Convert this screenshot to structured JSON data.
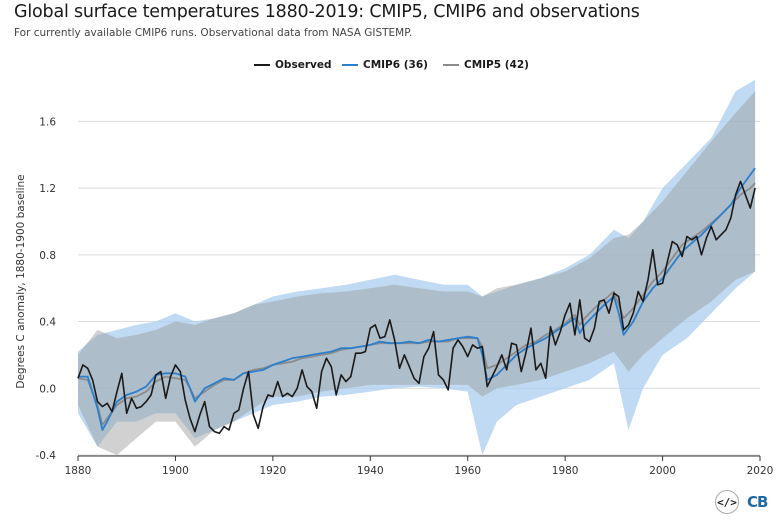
{
  "title": "Global surface temperatures 1880-2019: CMIP5, CMIP6 and observations",
  "subtitle": "For currently available CMIP6 runs. Observational data from NASA GISTEMP.",
  "colors": {
    "observed": "#1a1a1a",
    "cmip6": "#2b7fcc",
    "cmip5": "#8c8c8c",
    "cmip6_band": "#a9cdee",
    "cmip5_band": "#9a9a9a"
  },
  "legend": {
    "observed": "Observed",
    "cmip6": "CMIP6 (36)",
    "cmip5": "CMIP5 (42)"
  },
  "logo": {
    "embed_icon": "code-embed-icon",
    "brand": "CB"
  },
  "chart_data": {
    "type": "line",
    "title": "Global surface temperatures 1880-2019: CMIP5, CMIP6 and observations",
    "subtitle": "For currently available CMIP6 runs. Observational data from NASA GISTEMP.",
    "xlabel": "",
    "ylabel": "Degrees C anomaly, 1880-1900 baseline",
    "xlim": [
      1880,
      2020
    ],
    "ylim": [
      -0.4,
      1.8
    ],
    "xticks": [
      1880,
      1900,
      1920,
      1940,
      1960,
      1980,
      2000,
      2020
    ],
    "yticks": [
      -0.4,
      0.0,
      0.4,
      0.8,
      1.2,
      1.6
    ],
    "ytick_labels": [
      "-0.4",
      "0.0",
      "0.4",
      "0.8",
      "1.2",
      "1.6"
    ],
    "grid": "horizontal",
    "legend_position": "top-center",
    "bands": [
      {
        "name": "CMIP6 range",
        "x": [
          1880,
          1884,
          1888,
          1892,
          1896,
          1900,
          1904,
          1908,
          1912,
          1916,
          1920,
          1925,
          1930,
          1935,
          1940,
          1945,
          1950,
          1955,
          1960,
          1963,
          1966,
          1970,
          1975,
          1980,
          1985,
          1990,
          1993,
          1996,
          2000,
          2005,
          2010,
          2015,
          2019
        ],
        "lower": [
          -0.15,
          -0.35,
          -0.2,
          -0.2,
          -0.15,
          -0.15,
          -0.3,
          -0.25,
          -0.2,
          -0.15,
          -0.1,
          -0.08,
          -0.05,
          -0.04,
          -0.02,
          0.0,
          0.01,
          0.0,
          -0.02,
          -0.4,
          -0.2,
          -0.1,
          -0.05,
          0.0,
          0.05,
          0.15,
          -0.25,
          0.0,
          0.2,
          0.3,
          0.45,
          0.6,
          0.7
        ],
        "upper": [
          0.22,
          0.32,
          0.35,
          0.38,
          0.4,
          0.45,
          0.4,
          0.42,
          0.45,
          0.5,
          0.55,
          0.58,
          0.6,
          0.62,
          0.65,
          0.68,
          0.65,
          0.62,
          0.62,
          0.55,
          0.58,
          0.62,
          0.66,
          0.72,
          0.8,
          0.95,
          0.9,
          1.0,
          1.2,
          1.35,
          1.5,
          1.78,
          1.85
        ]
      },
      {
        "name": "CMIP5 range",
        "x": [
          1880,
          1884,
          1888,
          1892,
          1896,
          1900,
          1904,
          1908,
          1912,
          1916,
          1920,
          1925,
          1930,
          1935,
          1940,
          1945,
          1950,
          1955,
          1960,
          1963,
          1966,
          1970,
          1975,
          1980,
          1985,
          1990,
          1993,
          1996,
          2000,
          2005,
          2010,
          2015,
          2019
        ],
        "lower": [
          -0.1,
          -0.35,
          -0.4,
          -0.3,
          -0.2,
          -0.2,
          -0.35,
          -0.25,
          -0.2,
          -0.12,
          -0.05,
          -0.05,
          -0.02,
          0.0,
          0.02,
          0.02,
          0.02,
          0.02,
          0.02,
          -0.05,
          0.0,
          0.02,
          0.05,
          0.1,
          0.15,
          0.22,
          0.1,
          0.2,
          0.3,
          0.42,
          0.52,
          0.65,
          0.7
        ],
        "upper": [
          0.2,
          0.35,
          0.3,
          0.32,
          0.35,
          0.4,
          0.38,
          0.42,
          0.45,
          0.5,
          0.52,
          0.55,
          0.57,
          0.58,
          0.6,
          0.62,
          0.6,
          0.58,
          0.58,
          0.55,
          0.6,
          0.62,
          0.66,
          0.7,
          0.78,
          0.9,
          0.92,
          1.0,
          1.12,
          1.3,
          1.48,
          1.65,
          1.78
        ]
      }
    ],
    "series": [
      {
        "name": "Observed",
        "x": [
          1880,
          1881,
          1882,
          1883,
          1884,
          1885,
          1886,
          1887,
          1888,
          1889,
          1890,
          1891,
          1892,
          1893,
          1894,
          1895,
          1896,
          1897,
          1898,
          1899,
          1900,
          1901,
          1902,
          1903,
          1904,
          1905,
          1906,
          1907,
          1908,
          1909,
          1910,
          1911,
          1912,
          1913,
          1914,
          1915,
          1916,
          1917,
          1918,
          1919,
          1920,
          1921,
          1922,
          1923,
          1924,
          1925,
          1926,
          1927,
          1928,
          1929,
          1930,
          1931,
          1932,
          1933,
          1934,
          1935,
          1936,
          1937,
          1938,
          1939,
          1940,
          1941,
          1942,
          1943,
          1944,
          1945,
          1946,
          1947,
          1948,
          1949,
          1950,
          1951,
          1952,
          1953,
          1954,
          1955,
          1956,
          1957,
          1958,
          1959,
          1960,
          1961,
          1962,
          1963,
          1964,
          1965,
          1966,
          1967,
          1968,
          1969,
          1970,
          1971,
          1972,
          1973,
          1974,
          1975,
          1976,
          1977,
          1978,
          1979,
          1980,
          1981,
          1982,
          1983,
          1984,
          1985,
          1986,
          1987,
          1988,
          1989,
          1990,
          1991,
          1992,
          1993,
          1994,
          1995,
          1996,
          1997,
          1998,
          1999,
          2000,
          2001,
          2002,
          2003,
          2004,
          2005,
          2006,
          2007,
          2008,
          2009,
          2010,
          2011,
          2012,
          2013,
          2014,
          2015,
          2016,
          2017,
          2018,
          2019
        ],
        "values": [
          0.06,
          0.14,
          0.12,
          0.05,
          -0.08,
          -0.11,
          -0.09,
          -0.14,
          -0.02,
          0.09,
          -0.15,
          -0.06,
          -0.12,
          -0.11,
          -0.08,
          -0.04,
          0.08,
          0.1,
          -0.06,
          0.07,
          0.14,
          0.1,
          -0.07,
          -0.18,
          -0.26,
          -0.16,
          -0.08,
          -0.23,
          -0.26,
          -0.27,
          -0.23,
          -0.25,
          -0.15,
          -0.13,
          0.0,
          0.1,
          -0.16,
          -0.24,
          -0.11,
          -0.04,
          -0.05,
          0.04,
          -0.05,
          -0.03,
          -0.05,
          0.0,
          0.11,
          0.01,
          -0.02,
          -0.12,
          0.1,
          0.18,
          0.13,
          -0.04,
          0.08,
          0.04,
          0.07,
          0.21,
          0.21,
          0.22,
          0.36,
          0.38,
          0.3,
          0.31,
          0.41,
          0.29,
          0.12,
          0.2,
          0.13,
          0.06,
          0.03,
          0.19,
          0.24,
          0.34,
          0.08,
          0.05,
          -0.01,
          0.24,
          0.29,
          0.25,
          0.19,
          0.26,
          0.24,
          0.25,
          0.01,
          0.07,
          0.13,
          0.2,
          0.11,
          0.27,
          0.26,
          0.1,
          0.22,
          0.36,
          0.11,
          0.15,
          0.06,
          0.37,
          0.26,
          0.34,
          0.44,
          0.51,
          0.32,
          0.53,
          0.3,
          0.28,
          0.36,
          0.52,
          0.53,
          0.45,
          0.57,
          0.55,
          0.35,
          0.38,
          0.45,
          0.58,
          0.52,
          0.65,
          0.83,
          0.62,
          0.63,
          0.76,
          0.88,
          0.86,
          0.79,
          0.91,
          0.89,
          0.91,
          0.8,
          0.9,
          0.97,
          0.89,
          0.92,
          0.95,
          1.02,
          1.16,
          1.24,
          1.16,
          1.08,
          1.2
        ]
      },
      {
        "name": "CMIP6 (36)",
        "x": [
          1880,
          1882,
          1884,
          1885,
          1886,
          1888,
          1890,
          1892,
          1894,
          1896,
          1898,
          1900,
          1902,
          1903,
          1904,
          1906,
          1908,
          1910,
          1912,
          1914,
          1916,
          1918,
          1920,
          1922,
          1924,
          1926,
          1928,
          1930,
          1932,
          1934,
          1936,
          1938,
          1940,
          1942,
          1944,
          1946,
          1948,
          1950,
          1952,
          1954,
          1956,
          1958,
          1960,
          1962,
          1963,
          1964,
          1966,
          1968,
          1970,
          1972,
          1974,
          1976,
          1978,
          1980,
          1982,
          1983,
          1984,
          1986,
          1988,
          1990,
          1991,
          1992,
          1994,
          1996,
          1998,
          2000,
          2002,
          2004,
          2006,
          2008,
          2010,
          2012,
          2014,
          2016,
          2018,
          2019
        ],
        "values": [
          0.07,
          0.07,
          -0.12,
          -0.25,
          -0.2,
          -0.08,
          -0.04,
          -0.02,
          0.01,
          0.08,
          0.09,
          0.09,
          0.07,
          0.0,
          -0.08,
          0.0,
          0.03,
          0.06,
          0.05,
          0.09,
          0.1,
          0.11,
          0.14,
          0.16,
          0.18,
          0.19,
          0.2,
          0.21,
          0.22,
          0.24,
          0.24,
          0.25,
          0.26,
          0.28,
          0.27,
          0.27,
          0.28,
          0.27,
          0.29,
          0.28,
          0.29,
          0.3,
          0.31,
          0.3,
          0.2,
          0.05,
          0.08,
          0.14,
          0.2,
          0.24,
          0.27,
          0.3,
          0.34,
          0.38,
          0.42,
          0.33,
          0.38,
          0.44,
          0.5,
          0.55,
          0.45,
          0.32,
          0.4,
          0.52,
          0.6,
          0.66,
          0.74,
          0.82,
          0.87,
          0.92,
          0.98,
          1.04,
          1.1,
          1.2,
          1.28,
          1.32
        ]
      },
      {
        "name": "CMIP5 (42)",
        "x": [
          1880,
          1882,
          1884,
          1885,
          1886,
          1888,
          1890,
          1892,
          1894,
          1896,
          1898,
          1900,
          1902,
          1903,
          1904,
          1906,
          1908,
          1910,
          1912,
          1914,
          1916,
          1918,
          1920,
          1922,
          1924,
          1926,
          1928,
          1930,
          1932,
          1934,
          1936,
          1938,
          1940,
          1942,
          1944,
          1946,
          1948,
          1950,
          1952,
          1954,
          1956,
          1958,
          1960,
          1962,
          1963,
          1964,
          1966,
          1968,
          1970,
          1972,
          1974,
          1976,
          1978,
          1980,
          1982,
          1983,
          1984,
          1986,
          1988,
          1990,
          1991,
          1992,
          1994,
          1996,
          1998,
          2000,
          2002,
          2004,
          2006,
          2008,
          2010,
          2012,
          2014,
          2016,
          2018,
          2019
        ],
        "values": [
          0.06,
          0.05,
          -0.1,
          -0.22,
          -0.18,
          -0.1,
          -0.06,
          -0.05,
          -0.02,
          0.04,
          0.07,
          0.06,
          0.05,
          0.0,
          -0.06,
          -0.02,
          0.02,
          0.05,
          0.05,
          0.09,
          0.11,
          0.12,
          0.14,
          0.15,
          0.16,
          0.18,
          0.19,
          0.2,
          0.21,
          0.23,
          0.24,
          0.25,
          0.26,
          0.27,
          0.27,
          0.27,
          0.27,
          0.27,
          0.28,
          0.28,
          0.28,
          0.3,
          0.3,
          0.3,
          0.25,
          0.12,
          0.14,
          0.18,
          0.22,
          0.26,
          0.28,
          0.32,
          0.35,
          0.39,
          0.44,
          0.38,
          0.42,
          0.48,
          0.53,
          0.58,
          0.5,
          0.42,
          0.48,
          0.56,
          0.64,
          0.7,
          0.78,
          0.86,
          0.9,
          0.94,
          0.99,
          1.04,
          1.1,
          1.16,
          1.2,
          1.23
        ]
      }
    ]
  }
}
